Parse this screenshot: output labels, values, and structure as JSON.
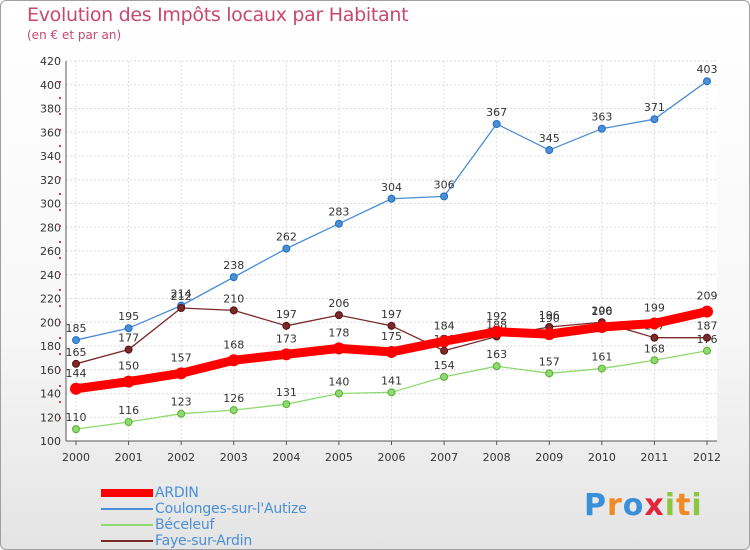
{
  "header": {
    "title": "Evolution des Impôts locaux par Habitant",
    "subtitle": "(en € et par an)"
  },
  "brand": {
    "letters": [
      "P",
      "r",
      "o",
      "x",
      "i",
      "t",
      "i"
    ],
    "colors": [
      "#3a8fd9",
      "#f08a24",
      "#3a8fd9",
      "#e2273a",
      "#8cc63f",
      "#f08a24",
      "#8cc63f"
    ]
  },
  "chart_data": {
    "type": "line",
    "x": [
      "2000",
      "2001",
      "2002",
      "2003",
      "2004",
      "2005",
      "2006",
      "2007",
      "2008",
      "2009",
      "2010",
      "2011",
      "2012"
    ],
    "ylim": [
      100,
      420
    ],
    "yticks": [
      100,
      120,
      140,
      160,
      180,
      200,
      220,
      240,
      260,
      280,
      300,
      320,
      340,
      360,
      380,
      400,
      420
    ],
    "grid": true,
    "legend_position": "bottom-left",
    "series": [
      {
        "name": "ARDIN",
        "color": "#ff0000",
        "values": [
          144,
          150,
          157,
          168,
          173,
          178,
          175,
          184,
          192,
          190,
          196,
          199,
          209
        ]
      },
      {
        "name": "Coulonges-sur-l'Autize",
        "color": "#4a8ed6",
        "values": [
          185,
          195,
          214,
          238,
          262,
          283,
          304,
          306,
          367,
          345,
          363,
          371,
          403
        ]
      },
      {
        "name": "Béceleuf",
        "color": "#90d970",
        "values": [
          110,
          116,
          123,
          126,
          131,
          140,
          141,
          154,
          163,
          157,
          161,
          168,
          176
        ]
      },
      {
        "name": "Faye-sur-Ardin",
        "color": "#7a2a2a",
        "values": [
          165,
          177,
          212,
          210,
          197,
          206,
          197,
          176,
          188,
          196,
          200,
          187,
          187
        ]
      }
    ]
  }
}
